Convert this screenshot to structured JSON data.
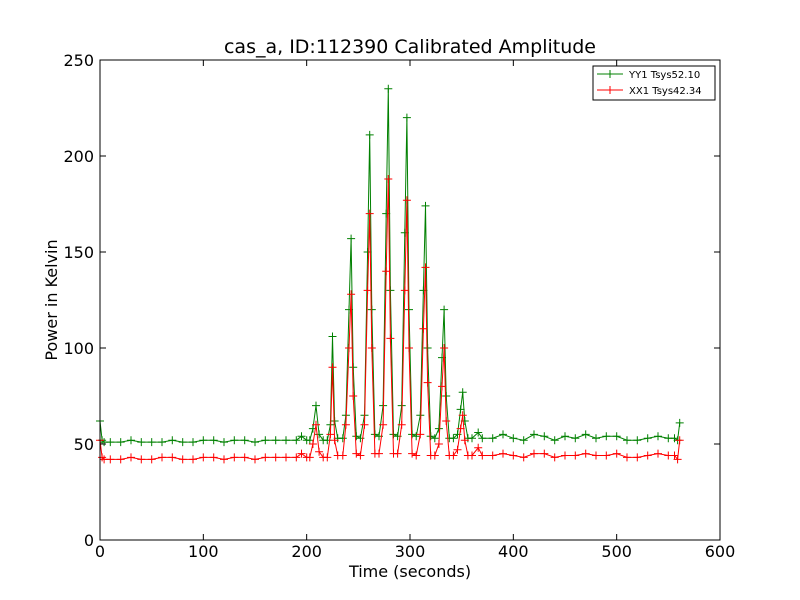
{
  "chart_data": {
    "type": "line",
    "title": "cas_a, ID:112390 Calibrated Amplitude",
    "xlabel": "Time (seconds)",
    "ylabel": "Power in Kelvin",
    "xlim": [
      0,
      600
    ],
    "ylim": [
      0,
      250
    ],
    "xticks": [
      "0",
      "100",
      "200",
      "300",
      "400",
      "500",
      "600"
    ],
    "yticks": [
      "0",
      "50",
      "100",
      "150",
      "200",
      "250"
    ],
    "grid": false,
    "legend_position": "top-right",
    "marker": "+",
    "series": [
      {
        "name": "YY1 Tsys52.10",
        "color": "#008000",
        "x": [
          0,
          2,
          4,
          10,
          20,
          30,
          40,
          50,
          60,
          70,
          80,
          90,
          100,
          110,
          120,
          130,
          140,
          150,
          160,
          170,
          180,
          190,
          195,
          200,
          203,
          206,
          209,
          212,
          216,
          220,
          223,
          225,
          227,
          230,
          235,
          238,
          241,
          243,
          245,
          248,
          252,
          256,
          259,
          261,
          263,
          266,
          270,
          274,
          277,
          279,
          281,
          284,
          288,
          292,
          295,
          297,
          299,
          302,
          306,
          310,
          313,
          315,
          317,
          320,
          324,
          328,
          331,
          333,
          335,
          338,
          342,
          346,
          349,
          351,
          353,
          356,
          360,
          366,
          370,
          380,
          390,
          400,
          410,
          420,
          430,
          440,
          450,
          460,
          470,
          480,
          490,
          500,
          510,
          520,
          530,
          540,
          550,
          556,
          559,
          561
        ],
        "values": [
          62,
          52,
          51,
          51,
          51,
          52,
          51,
          51,
          51,
          52,
          51,
          51,
          52,
          52,
          51,
          52,
          52,
          51,
          52,
          52,
          52,
          52,
          54,
          52,
          52,
          58,
          70,
          55,
          52,
          52,
          60,
          106,
          62,
          53,
          53,
          65,
          120,
          157,
          90,
          54,
          53,
          65,
          150,
          211,
          120,
          55,
          54,
          70,
          170,
          235,
          130,
          55,
          54,
          70,
          160,
          220,
          120,
          55,
          54,
          65,
          130,
          174,
          100,
          54,
          53,
          58,
          95,
          120,
          75,
          53,
          53,
          55,
          68,
          77,
          62,
          53,
          53,
          56,
          53,
          53,
          55,
          53,
          52,
          55,
          54,
          52,
          54,
          53,
          55,
          53,
          54,
          54,
          52,
          52,
          53,
          54,
          53,
          53,
          52,
          61
        ]
      },
      {
        "name": "XX1 Tsys42.34",
        "color": "#ff0000",
        "x": [
          0,
          2,
          4,
          10,
          20,
          30,
          40,
          50,
          60,
          70,
          80,
          90,
          100,
          110,
          120,
          130,
          140,
          150,
          160,
          170,
          180,
          190,
          195,
          200,
          203,
          206,
          209,
          212,
          216,
          220,
          223,
          225,
          227,
          230,
          235,
          238,
          241,
          243,
          245,
          248,
          252,
          256,
          259,
          261,
          263,
          266,
          270,
          274,
          277,
          279,
          281,
          284,
          288,
          292,
          295,
          297,
          299,
          302,
          306,
          310,
          313,
          315,
          317,
          320,
          324,
          328,
          331,
          333,
          335,
          338,
          342,
          346,
          349,
          351,
          353,
          356,
          360,
          366,
          370,
          380,
          390,
          400,
          410,
          420,
          430,
          440,
          450,
          460,
          470,
          480,
          490,
          500,
          510,
          520,
          530,
          540,
          550,
          556,
          559,
          561
        ],
        "values": [
          52,
          43,
          42,
          42,
          42,
          43,
          42,
          42,
          43,
          43,
          42,
          42,
          43,
          43,
          42,
          43,
          43,
          42,
          43,
          43,
          43,
          43,
          45,
          43,
          43,
          50,
          60,
          46,
          43,
          43,
          55,
          90,
          52,
          44,
          44,
          60,
          100,
          128,
          75,
          45,
          44,
          60,
          130,
          170,
          100,
          45,
          45,
          60,
          140,
          188,
          105,
          45,
          45,
          60,
          130,
          177,
          100,
          45,
          44,
          55,
          110,
          142,
          82,
          44,
          44,
          50,
          80,
          100,
          62,
          44,
          44,
          47,
          58,
          65,
          52,
          44,
          44,
          48,
          44,
          44,
          45,
          44,
          43,
          45,
          45,
          43,
          44,
          44,
          45,
          44,
          44,
          45,
          43,
          43,
          44,
          45,
          44,
          44,
          42,
          52
        ]
      }
    ]
  }
}
